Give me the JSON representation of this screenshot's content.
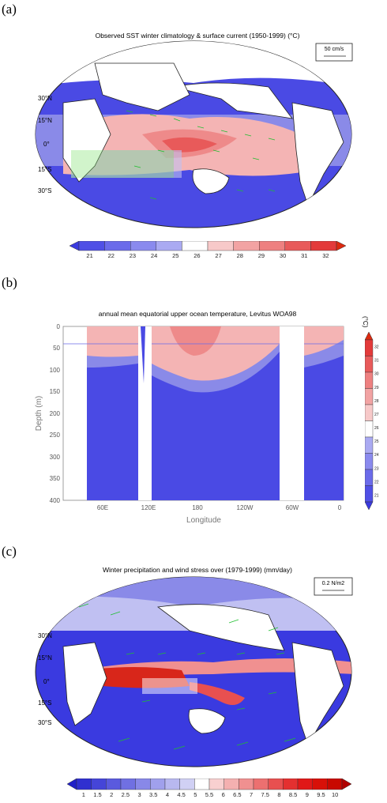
{
  "panels": {
    "a": {
      "label": "(a)",
      "title": "Observed SST winter climatology & surface current (1950-1999) (°C)",
      "ref_vector": "50 cm/s",
      "lat_labels": [
        "30°N",
        "15°N",
        "0°",
        "15°S",
        "30°S"
      ],
      "colorbar_ticks": [
        "21",
        "22",
        "23",
        "24",
        "25",
        "26",
        "27",
        "28",
        "29",
        "30",
        "31",
        "32"
      ],
      "colorbar_colors": [
        "#3a3ae0",
        "#5050e6",
        "#6b6bea",
        "#8a8aee",
        "#aaaaf2",
        "#ffffff",
        "#f7c9c9",
        "#f2a3a3",
        "#ee8080",
        "#e85a5a",
        "#e33a3a",
        "#dd2a10"
      ]
    },
    "b": {
      "label": "(b)",
      "title": "annual mean equatorial upper ocean temperature, Levitus WOA98",
      "ylabel": "Depth (m)",
      "xlabel": "Longitude",
      "unit": "(°C)",
      "y_ticks": [
        "0",
        "50",
        "100",
        "150",
        "200",
        "250",
        "300",
        "350",
        "400"
      ],
      "x_ticks": [
        "60E",
        "120E",
        "180",
        "120W",
        "60W",
        "0"
      ],
      "colorbar_ticks": [
        "32",
        "31",
        "30",
        "29",
        "28",
        "27",
        "26",
        "25",
        "24",
        "23",
        "22",
        "21"
      ]
    },
    "c": {
      "label": "(c)",
      "title": "Winter precipitation and wind stress over (1979-1999) (mm/day)",
      "ref_vector": "0.2 N/m2",
      "lat_labels": [
        "30°N",
        "15°N",
        "0°",
        "15°S",
        "30°S"
      ],
      "colorbar_ticks": [
        "1",
        "1.5",
        "2",
        "2.5",
        "3",
        "3.5",
        "4",
        "4.5",
        "5",
        "5.5",
        "6",
        "6.5",
        "7",
        "7.5",
        "8",
        "8.5",
        "9",
        "9.5",
        "10"
      ],
      "colorbar_colors": [
        "#2020c8",
        "#3030d0",
        "#4545d8",
        "#5a5ade",
        "#7070e2",
        "#8888e8",
        "#a0a0ec",
        "#b8b8f0",
        "#d0d0f4",
        "#ffffff",
        "#f8d0d0",
        "#f4b0b0",
        "#f09090",
        "#ec7070",
        "#e85050",
        "#e43030",
        "#e01818",
        "#d81008",
        "#c80800",
        "#b00000"
      ]
    }
  }
}
